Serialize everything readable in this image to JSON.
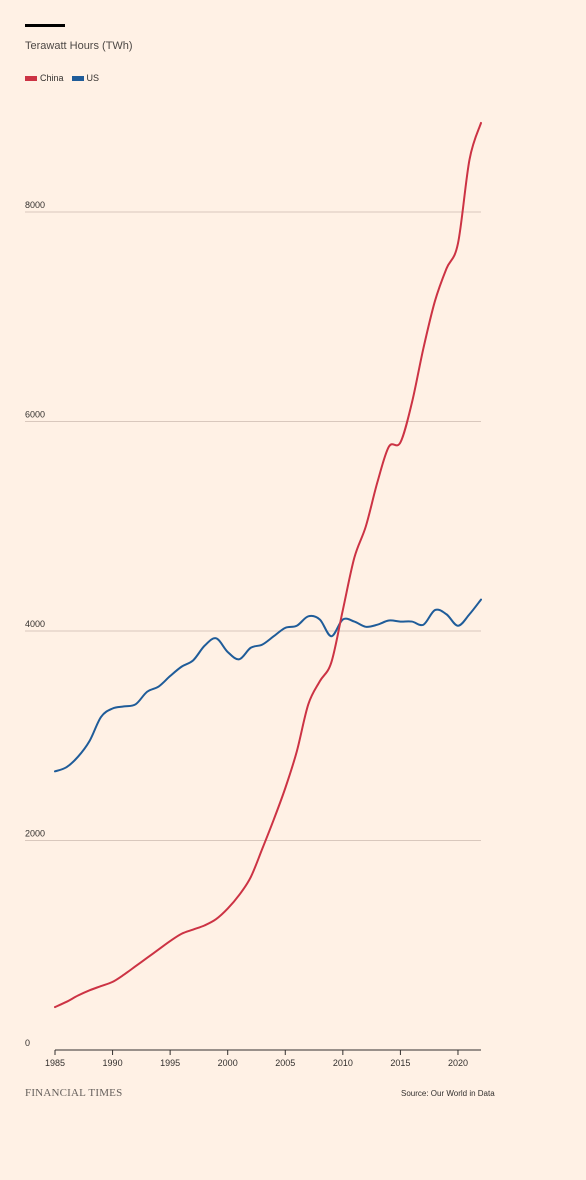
{
  "subtitle": "Terawatt Hours (TWh)",
  "brand": "FINANCIAL TIMES",
  "source": "Source: Our World in Data",
  "colors": {
    "background": "#fff1e5",
    "china": "#cc3344",
    "us": "#1f5c99",
    "grid": "#d9c8bd"
  },
  "chart_data": {
    "type": "line",
    "title": "",
    "ylabel": "Terawatt Hours (TWh)",
    "xlabel": "",
    "xlim": [
      1985,
      2022
    ],
    "ylim": [
      0,
      8800
    ],
    "xticks": [
      1985,
      1990,
      1995,
      2000,
      2005,
      2010,
      2015,
      2020
    ],
    "yticks": [
      0,
      2000,
      4000,
      6000,
      8000
    ],
    "grid": true,
    "legend": "top-left",
    "x": [
      1985,
      1986,
      1987,
      1988,
      1989,
      1990,
      1991,
      1992,
      1993,
      1994,
      1995,
      1996,
      1997,
      1998,
      1999,
      2000,
      2001,
      2002,
      2003,
      2004,
      2005,
      2006,
      2007,
      2008,
      2009,
      2010,
      2011,
      2012,
      2013,
      2014,
      2015,
      2016,
      2017,
      2018,
      2019,
      2020,
      2021,
      2022
    ],
    "series": [
      {
        "name": "China",
        "color": "#cc3344",
        "values": [
          410,
          460,
          520,
          570,
          610,
          650,
          720,
          800,
          880,
          960,
          1040,
          1110,
          1150,
          1190,
          1250,
          1350,
          1480,
          1650,
          1920,
          2200,
          2500,
          2850,
          3300,
          3520,
          3700,
          4200,
          4700,
          5000,
          5420,
          5760,
          5800,
          6180,
          6700,
          7150,
          7460,
          7700,
          8500,
          8850
        ]
      },
      {
        "name": "US",
        "color": "#1f5c99",
        "values": [
          2660,
          2700,
          2800,
          2950,
          3180,
          3260,
          3280,
          3300,
          3420,
          3470,
          3570,
          3660,
          3720,
          3860,
          3930,
          3800,
          3730,
          3840,
          3870,
          3950,
          4030,
          4050,
          4140,
          4110,
          3950,
          4110,
          4090,
          4040,
          4060,
          4100,
          4090,
          4090,
          4060,
          4200,
          4160,
          4050,
          4160,
          4300
        ]
      }
    ]
  }
}
